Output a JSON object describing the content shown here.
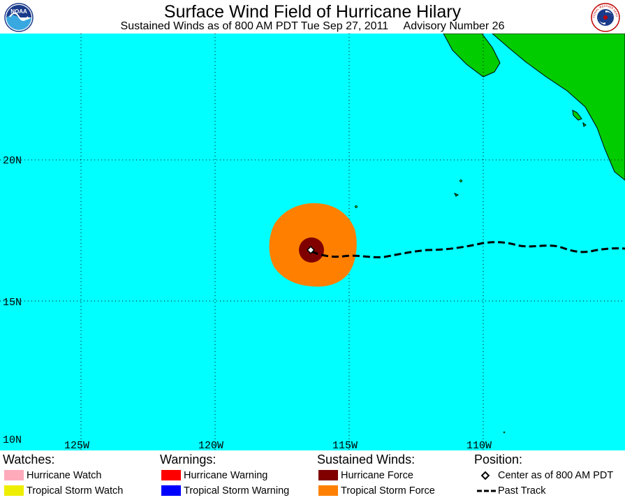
{
  "header": {
    "title": "Surface Wind Field of Hurricane Hilary",
    "subtitle": "Sustained Winds as of 800 AM PDT Tue Sep 27, 2011     Advisory Number 26",
    "left_logo": {
      "name": "noaa-logo",
      "text": "NOAA"
    },
    "right_logo": {
      "name": "national-weather-service-logo",
      "text": "NATIONAL WEATHER SERVICE"
    }
  },
  "map": {
    "lat_labels": [
      "20N",
      "15N",
      "10N"
    ],
    "lon_labels": [
      "125W",
      "120W",
      "115W",
      "110W"
    ],
    "colors": {
      "ocean": "#00ffff",
      "land": "#00cc00",
      "tropical_storm_force": "#ff8000",
      "hurricane_force": "#800000",
      "grid": "#000000"
    }
  },
  "legend": {
    "watches": {
      "heading": "Watches:",
      "items": [
        {
          "label": "Hurricane Watch",
          "color": "#ffaabb"
        },
        {
          "label": "Tropical Storm Watch",
          "color": "#eeee00"
        }
      ]
    },
    "warnings": {
      "heading": "Warnings:",
      "items": [
        {
          "label": "Hurricane Warning",
          "color": "#ff0000"
        },
        {
          "label": "Tropical Storm Warning",
          "color": "#0000ff"
        }
      ]
    },
    "sustained_winds": {
      "heading": "Sustained Winds:",
      "items": [
        {
          "label": "Hurricane Force",
          "color": "#800000"
        },
        {
          "label": "Tropical Storm Force",
          "color": "#ff8000"
        }
      ]
    },
    "position": {
      "heading": "Position:",
      "items": [
        {
          "label": "Center as of 800 AM PDT",
          "symbol": "diamond-icon"
        },
        {
          "label": "Past Track",
          "symbol": "dashed-line-icon"
        }
      ]
    }
  }
}
